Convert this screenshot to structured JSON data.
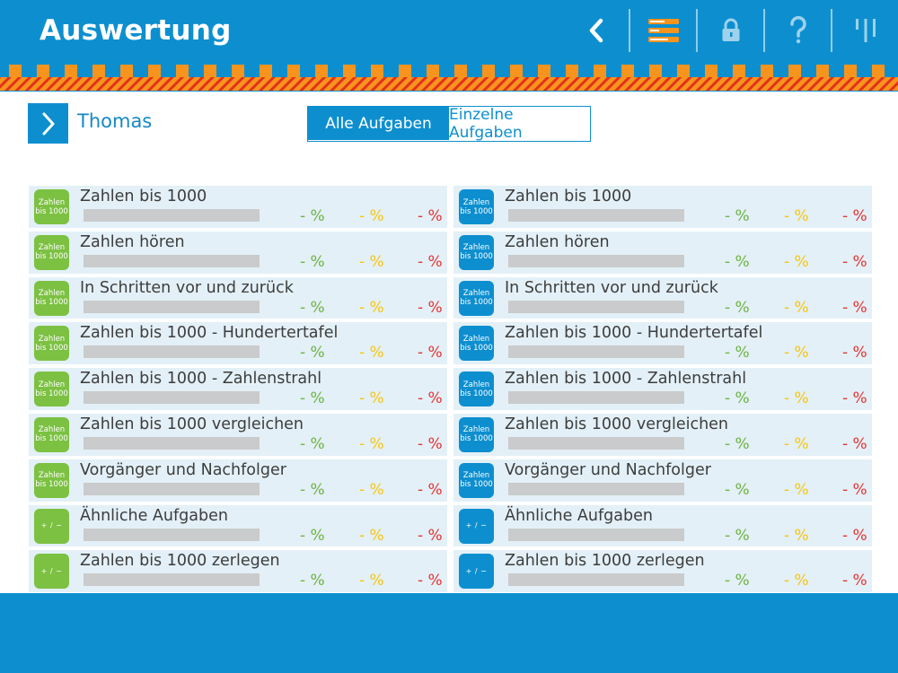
{
  "header": {
    "title": "Auswertung",
    "colors": {
      "primary": "#0d8fcf",
      "accent": "#f7941d"
    },
    "tools": [
      {
        "icon": "back-chevron-icon"
      },
      {
        "icon": "list-view-icon"
      },
      {
        "icon": "lock-icon"
      },
      {
        "icon": "help-icon"
      },
      {
        "icon": "tally-icon"
      }
    ]
  },
  "student": {
    "name": "Thomas"
  },
  "tabs": [
    {
      "label": "Alle Aufgaben",
      "active": true
    },
    {
      "label": "Einzelne Aufgaben",
      "active": false
    }
  ],
  "columns": [
    {
      "badge_color": "green",
      "rows": [
        {
          "badge": "Zahlen bis 1000",
          "title": "Zahlen bis 1000",
          "green": "- %",
          "yellow": "- %",
          "red": "- %"
        },
        {
          "badge": "Zahlen bis 1000",
          "title": "Zahlen hören",
          "green": "- %",
          "yellow": "- %",
          "red": "- %"
        },
        {
          "badge": "Zahlen bis 1000",
          "title": "In Schritten vor und zurück",
          "green": "- %",
          "yellow": "- %",
          "red": "- %"
        },
        {
          "badge": "Zahlen bis 1000",
          "title": "Zahlen bis 1000 - Hundertertafel",
          "green": "- %",
          "yellow": "- %",
          "red": "- %"
        },
        {
          "badge": "Zahlen bis 1000",
          "title": "Zahlen bis 1000 - Zahlenstrahl",
          "green": "- %",
          "yellow": "- %",
          "red": "- %"
        },
        {
          "badge": "Zahlen bis 1000",
          "title": "Zahlen bis 1000 vergleichen",
          "green": "- %",
          "yellow": "- %",
          "red": "- %"
        },
        {
          "badge": "Zahlen bis 1000",
          "title": "Vorgänger und Nachfolger",
          "green": "- %",
          "yellow": "- %",
          "red": "- %"
        },
        {
          "badge": "+ / −",
          "title": "Ähnliche Aufgaben",
          "green": "- %",
          "yellow": "- %",
          "red": "- %"
        },
        {
          "badge": "+ / −",
          "title": "Zahlen bis 1000 zerlegen",
          "green": "- %",
          "yellow": "- %",
          "red": "- %"
        }
      ]
    },
    {
      "badge_color": "blue",
      "rows": [
        {
          "badge": "Zahlen bis 1000",
          "title": "Zahlen bis 1000",
          "green": "- %",
          "yellow": "- %",
          "red": "- %"
        },
        {
          "badge": "Zahlen bis 1000",
          "title": "Zahlen hören",
          "green": "- %",
          "yellow": "- %",
          "red": "- %"
        },
        {
          "badge": "Zahlen bis 1000",
          "title": "In Schritten vor und zurück",
          "green": "- %",
          "yellow": "- %",
          "red": "- %"
        },
        {
          "badge": "Zahlen bis 1000",
          "title": "Zahlen bis 1000 - Hundertertafel",
          "green": "- %",
          "yellow": "- %",
          "red": "- %"
        },
        {
          "badge": "Zahlen bis 1000",
          "title": "Zahlen bis 1000 - Zahlenstrahl",
          "green": "- %",
          "yellow": "- %",
          "red": "- %"
        },
        {
          "badge": "Zahlen bis 1000",
          "title": "Zahlen bis 1000 vergleichen",
          "green": "- %",
          "yellow": "- %",
          "red": "- %"
        },
        {
          "badge": "Zahlen bis 1000",
          "title": "Vorgänger und Nachfolger",
          "green": "- %",
          "yellow": "- %",
          "red": "- %"
        },
        {
          "badge": "+ / −",
          "title": "Ähnliche Aufgaben",
          "green": "- %",
          "yellow": "- %",
          "red": "- %"
        },
        {
          "badge": "+ / −",
          "title": "Zahlen bis 1000 zerlegen",
          "green": "- %",
          "yellow": "- %",
          "red": "- %"
        }
      ]
    }
  ]
}
